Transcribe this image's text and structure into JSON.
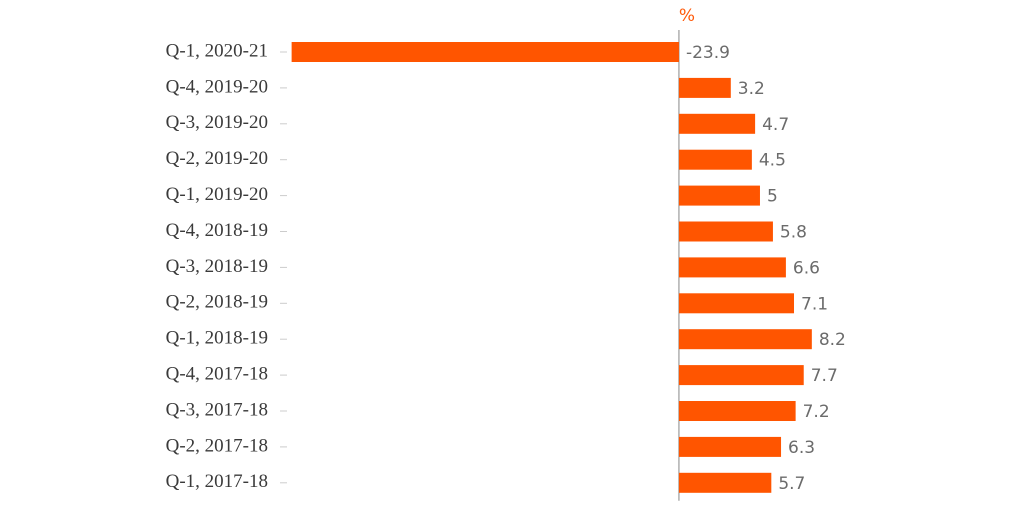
{
  "chart_data": {
    "type": "bar",
    "orientation": "horizontal",
    "axis_label": "%",
    "categories": [
      "Q-1, 2020-21",
      "Q-4, 2019-20",
      "Q-3, 2019-20",
      "Q-2, 2019-20",
      "Q-1, 2019-20",
      "Q-4, 2018-19",
      "Q-3, 2018-19",
      "Q-2, 2018-19",
      "Q-1, 2018-19",
      "Q-4, 2017-18",
      "Q-3, 2017-18",
      "Q-2, 2017-18",
      "Q-1, 2017-18"
    ],
    "values": [
      -23.9,
      3.2,
      4.7,
      4.5,
      5,
      5.8,
      6.6,
      7.1,
      8.2,
      7.7,
      7.2,
      6.3,
      5.7
    ],
    "color": "#ff5500",
    "xlim": [
      -24,
      10
    ]
  }
}
